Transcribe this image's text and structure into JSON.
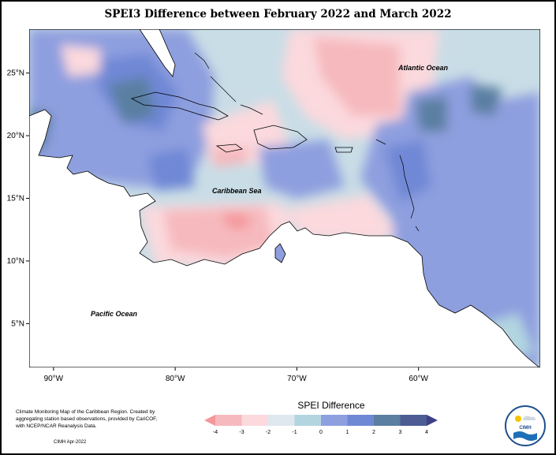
{
  "title": "SPEI3 Difference between February 2022 and March 2022",
  "map": {
    "lon_ticks": [
      "90°W",
      "80°W",
      "70°W",
      "60°W"
    ],
    "lat_ticks": [
      "25°N",
      "20°N",
      "15°N",
      "10°N",
      "5°N"
    ],
    "extent": {
      "lon": [
        -92,
        -50
      ],
      "lat": [
        1.5,
        28.5
      ]
    },
    "labels": {
      "atlantic": "Atlantic Ocean",
      "caribbean": "Caribbean Sea",
      "pacific": "Pacific Ocean"
    }
  },
  "legend": {
    "title": "SPEI Difference",
    "ticks": [
      "-4",
      "-3",
      "-2",
      "-1",
      "0",
      "1",
      "2",
      "3",
      "4"
    ],
    "colors": [
      "#f4969a",
      "#f6b9be",
      "#fbd9dd",
      "#dfe8ef",
      "#b3d5e0",
      "#8e9fdf",
      "#6f88d5",
      "#5a7fa1",
      "#4d5d93",
      "#3f3f86"
    ]
  },
  "credit": {
    "text": "Climate Monitoring Map of the Caribbean Region. Created by aggregating station based observations, provided by CariCOF, with NCEP/NCAR Reanalysis Data.",
    "agency_date": "CIMH Apr-2022"
  },
  "logo": {
    "label": "CIMH",
    "icon": "cimh-logo-icon"
  }
}
